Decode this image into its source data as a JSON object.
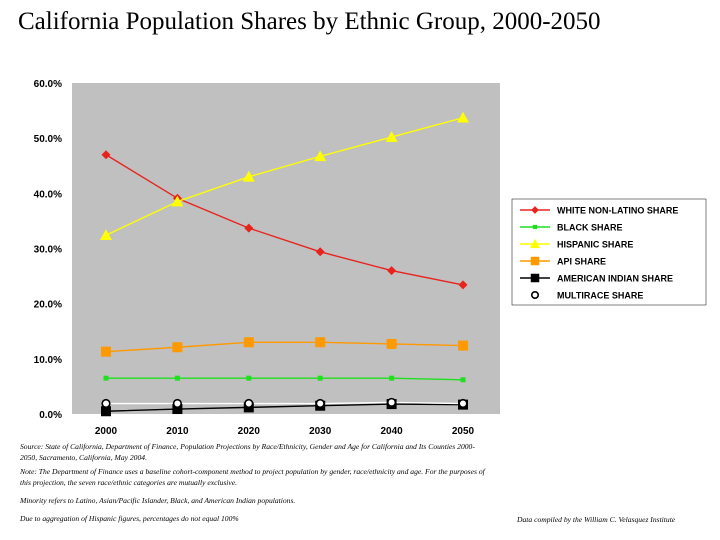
{
  "title": "California Population Shares by Ethnic Group, 2000-2050",
  "notes": {
    "source": "Source: State of California, Department of Finance, Population Projections by Race/Ethnicity, Gender and Age for California and Its Counties 2000-2050, Sacramento, California, May 2004.",
    "note": "Note: The Department of Finance uses a baseline cohort-component method to project population by gender, race/ethnicity and age. For the purposes of this projection, the seven race/ethnic categories are mutually exclusive.",
    "minority": "Minority refers to Latino, Asian/Pacific Islander, Black, and American Indian populations.",
    "rounding": "Due to aggregation of Hispanic figures, percentages do not equal 100%",
    "credit": "Data compiled by the William C. Velasquez Institute"
  },
  "chart_data": {
    "type": "line",
    "title": "California Population Shares by Ethnic Group, 2000-2050",
    "x": [
      "2000",
      "2010",
      "2020",
      "2030",
      "2040",
      "2050"
    ],
    "y_ticks": [
      "0.0%",
      "10.0%",
      "20.0%",
      "30.0%",
      "40.0%",
      "50.0%",
      "60.0%"
    ],
    "ylim": [
      0,
      60
    ],
    "grid": false,
    "plot_background": "#c0c0c0",
    "legend_position": "right",
    "series": [
      {
        "name": "WHITE NON-LATINO SHARE",
        "color": "#e8231e",
        "marker": "diamond",
        "values": [
          47.0,
          39.1,
          33.7,
          29.4,
          26.0,
          23.4
        ]
      },
      {
        "name": "BLACK SHARE",
        "color": "#1fe01f",
        "marker": "small-square",
        "values": [
          6.5,
          6.5,
          6.5,
          6.5,
          6.5,
          6.2
        ]
      },
      {
        "name": "HISPANIC SHARE",
        "color": "#ffff00",
        "marker": "triangle",
        "values": [
          32.4,
          38.5,
          43.0,
          46.7,
          50.2,
          53.7
        ]
      },
      {
        "name": "API SHARE",
        "color": "#ff9900",
        "marker": "square",
        "values": [
          11.3,
          12.1,
          13.0,
          13.0,
          12.7,
          12.4
        ]
      },
      {
        "name": "AMERICAN INDIAN SHARE",
        "color": "#000000",
        "marker": "square",
        "values": [
          0.5,
          0.9,
          1.2,
          1.5,
          1.8,
          1.7
        ]
      },
      {
        "name": "MULTIRACE SHARE",
        "color": "#ffffff",
        "marker": "circle",
        "values": [
          1.9,
          1.9,
          1.9,
          1.9,
          2.1,
          1.9
        ]
      }
    ]
  }
}
